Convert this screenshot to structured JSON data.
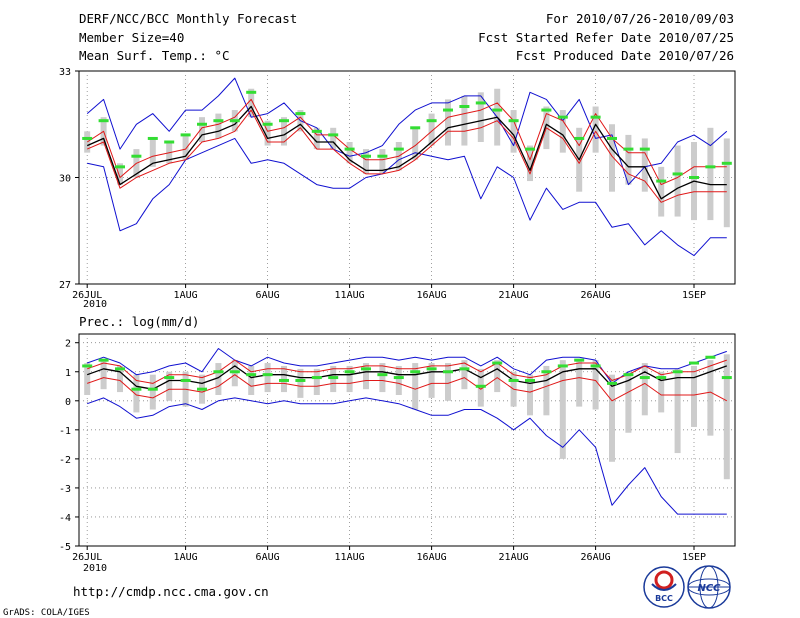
{
  "header": {
    "title": "DERF/NCC/BCC Monthly Forecast",
    "member": "Member Size=40",
    "variable": "Mean Surf. Temp.: °C",
    "period": "For 2010/07/26-2010/09/03",
    "started": "Fcst Started Refer Date 2010/07/25",
    "produced": "Fcst Produced Date 2010/07/26"
  },
  "footer": {
    "url": "http://cmdp.ncc.cma.gov.cn",
    "credit": "GrADS: COLA/IGES",
    "logo_left_text": "BCC",
    "logo_right_text": "NCC"
  },
  "colors": {
    "box": "#cccccc",
    "green": "#33dd33",
    "mean": "#000000",
    "red": "#e01818",
    "blue": "#1010d0",
    "grid": "#888888"
  },
  "chart_data": [
    {
      "type": "line",
      "id": "temp",
      "title": "Mean Surf. Temp.: °C",
      "x_tick_labels": [
        "26JUL",
        "1AUG",
        "6AUG",
        "11AUG",
        "16AUG",
        "21AUG",
        "26AUG",
        "1SEP"
      ],
      "x_tick_days": [
        1,
        7,
        12,
        17,
        22,
        27,
        32,
        38
      ],
      "x_sublabel": "2010",
      "xlim": [
        0.5,
        40.5
      ],
      "y_ticks": [
        27,
        30,
        33
      ],
      "ylim": [
        27,
        33
      ],
      "series": [
        {
          "name": "ensemble-mean",
          "values": [
            30.9,
            31.1,
            29.8,
            30.1,
            30.4,
            30.5,
            30.6,
            31.2,
            31.3,
            31.5,
            32.0,
            31.1,
            31.2,
            31.5,
            31.0,
            31.0,
            30.5,
            30.2,
            30.2,
            30.3,
            30.6,
            31.0,
            31.4,
            31.5,
            31.6,
            31.7,
            31.2,
            30.2,
            31.5,
            31.2,
            30.5,
            31.5,
            30.8,
            30.3,
            30.3,
            29.4,
            29.7,
            29.9,
            29.8,
            29.8
          ]
        },
        {
          "name": "red-upper",
          "values": [
            31.0,
            31.3,
            30.0,
            30.4,
            30.6,
            30.7,
            30.8,
            31.4,
            31.5,
            31.7,
            32.2,
            31.3,
            31.4,
            31.7,
            31.2,
            31.2,
            30.8,
            30.5,
            30.5,
            30.6,
            30.9,
            31.3,
            31.7,
            31.8,
            31.9,
            32.1,
            31.6,
            30.5,
            31.8,
            31.6,
            30.9,
            31.8,
            31.1,
            30.7,
            30.7,
            29.8,
            30.0,
            30.3,
            30.3,
            30.3
          ]
        },
        {
          "name": "red-lower",
          "values": [
            30.8,
            31.0,
            29.7,
            30.0,
            30.2,
            30.4,
            30.5,
            31.0,
            31.1,
            31.3,
            31.9,
            31.0,
            31.0,
            31.4,
            30.8,
            30.8,
            30.4,
            30.1,
            30.1,
            30.2,
            30.5,
            30.9,
            31.3,
            31.3,
            31.4,
            31.6,
            31.1,
            30.1,
            31.4,
            31.1,
            30.4,
            31.3,
            30.6,
            30.1,
            29.9,
            29.3,
            29.5,
            29.6,
            29.6,
            29.6
          ]
        },
        {
          "name": "blue-max",
          "values": [
            31.8,
            32.2,
            30.8,
            31.5,
            31.8,
            31.3,
            31.9,
            31.9,
            32.3,
            32.8,
            31.7,
            31.8,
            32.1,
            31.6,
            31.4,
            30.8,
            30.6,
            30.7,
            30.9,
            31.5,
            31.9,
            32.1,
            32.1,
            32.3,
            32.3,
            31.7,
            30.9,
            32.4,
            32.2,
            31.6,
            32.2,
            31.1,
            31.2,
            29.8,
            30.3,
            30.4,
            31.0,
            31.2,
            30.9,
            31.3
          ]
        },
        {
          "name": "blue-min",
          "values": [
            30.4,
            30.3,
            28.5,
            28.7,
            29.4,
            29.8,
            30.5,
            30.7,
            30.9,
            31.1,
            30.4,
            30.5,
            30.4,
            30.1,
            29.8,
            29.7,
            29.7,
            30.0,
            30.1,
            30.5,
            30.7,
            30.6,
            30.5,
            30.6,
            29.4,
            30.3,
            30.0,
            28.8,
            29.7,
            29.1,
            29.3,
            29.3,
            28.6,
            28.7,
            28.1,
            28.5,
            28.1,
            27.8,
            28.3,
            28.3
          ]
        },
        {
          "name": "green-obs",
          "values": [
            31.1,
            31.6,
            30.3,
            30.6,
            31.1,
            31.0,
            31.2,
            31.5,
            31.6,
            31.6,
            32.4,
            31.5,
            31.6,
            31.8,
            31.3,
            31.2,
            30.8,
            30.6,
            30.6,
            30.8,
            31.4,
            31.6,
            31.9,
            32.0,
            32.1,
            31.9,
            31.6,
            30.8,
            31.9,
            31.7,
            31.1,
            31.7,
            31.1,
            30.8,
            30.8,
            29.9,
            30.1,
            30.0,
            30.3,
            30.4
          ]
        },
        {
          "name": "box-top",
          "values": [
            31.3,
            31.7,
            30.4,
            30.8,
            31.1,
            31.0,
            31.2,
            31.7,
            31.8,
            31.9,
            32.5,
            31.6,
            31.7,
            31.9,
            31.4,
            31.4,
            31.0,
            30.8,
            30.8,
            31.0,
            31.4,
            31.8,
            32.2,
            32.3,
            32.4,
            32.5,
            31.9,
            30.9,
            32.0,
            31.9,
            31.4,
            32.0,
            31.5,
            31.2,
            31.1,
            30.3,
            30.9,
            31.0,
            31.4,
            31.1
          ]
        },
        {
          "name": "box-bottom",
          "values": [
            30.7,
            30.9,
            29.8,
            30.0,
            30.3,
            30.4,
            30.5,
            31.0,
            31.1,
            31.3,
            31.7,
            30.9,
            30.9,
            31.3,
            30.8,
            30.8,
            30.4,
            30.1,
            30.1,
            30.2,
            30.5,
            30.9,
            30.9,
            30.9,
            31.0,
            30.9,
            30.7,
            29.9,
            30.8,
            30.7,
            29.6,
            30.7,
            29.6,
            29.8,
            29.6,
            28.9,
            28.9,
            28.8,
            28.8,
            28.6
          ]
        }
      ]
    },
    {
      "type": "line",
      "id": "prec",
      "title": "Prec.: log(mm/d)",
      "x_tick_labels": [
        "26JUL",
        "1AUG",
        "6AUG",
        "11AUG",
        "16AUG",
        "21AUG",
        "26AUG",
        "1SEP"
      ],
      "x_tick_days": [
        1,
        7,
        12,
        17,
        22,
        27,
        32,
        38
      ],
      "x_sublabel": "2010",
      "xlim": [
        0.5,
        40.5
      ],
      "y_ticks": [
        -5,
        -4,
        -3,
        -2,
        -1,
        0,
        1,
        2
      ],
      "ylim": [
        -5,
        2.3
      ],
      "series": [
        {
          "name": "ensemble-mean",
          "values": [
            0.9,
            1.1,
            1.0,
            0.5,
            0.4,
            0.7,
            0.7,
            0.6,
            0.8,
            1.2,
            0.8,
            0.9,
            0.9,
            0.8,
            0.8,
            0.9,
            0.9,
            1.0,
            1.0,
            0.9,
            0.9,
            1.0,
            1.0,
            1.1,
            0.8,
            1.1,
            0.7,
            0.6,
            0.7,
            1.0,
            1.1,
            1.1,
            0.5,
            0.7,
            1.0,
            0.7,
            0.8,
            0.8,
            1.0,
            1.2
          ]
        },
        {
          "name": "red-upper",
          "values": [
            1.1,
            1.3,
            1.2,
            0.7,
            0.6,
            0.9,
            0.9,
            0.8,
            1.0,
            1.4,
            1.0,
            1.1,
            1.1,
            1.0,
            1.0,
            1.1,
            1.1,
            1.2,
            1.2,
            1.1,
            1.1,
            1.2,
            1.2,
            1.3,
            1.0,
            1.3,
            0.9,
            0.8,
            0.9,
            1.2,
            1.3,
            1.3,
            0.7,
            0.9,
            1.2,
            0.9,
            1.0,
            1.0,
            1.2,
            1.4
          ]
        },
        {
          "name": "red-lower",
          "values": [
            0.6,
            0.8,
            0.7,
            0.2,
            0.1,
            0.4,
            0.4,
            0.3,
            0.5,
            0.9,
            0.5,
            0.6,
            0.6,
            0.5,
            0.5,
            0.6,
            0.6,
            0.7,
            0.7,
            0.6,
            0.4,
            0.6,
            0.6,
            0.8,
            0.4,
            0.8,
            0.4,
            0.3,
            0.5,
            0.7,
            0.8,
            0.7,
            0.0,
            0.3,
            0.6,
            0.2,
            0.2,
            0.2,
            0.3,
            0.0
          ]
        },
        {
          "name": "blue-max",
          "values": [
            1.3,
            1.5,
            1.3,
            0.9,
            1.0,
            1.2,
            1.3,
            1.0,
            1.8,
            1.4,
            1.2,
            1.5,
            1.3,
            1.2,
            1.2,
            1.3,
            1.4,
            1.5,
            1.5,
            1.4,
            1.5,
            1.4,
            1.5,
            1.5,
            1.2,
            1.5,
            1.1,
            0.9,
            1.4,
            1.5,
            1.5,
            1.4,
            0.6,
            1.0,
            1.2,
            1.1,
            1.1,
            1.3,
            1.5,
            1.7
          ]
        },
        {
          "name": "blue-min",
          "values": [
            -0.1,
            0.1,
            -0.2,
            -0.6,
            -0.5,
            -0.2,
            -0.1,
            -0.3,
            0.0,
            0.1,
            0.0,
            -0.1,
            0.0,
            -0.1,
            -0.1,
            -0.1,
            0.0,
            0.1,
            0.0,
            -0.1,
            -0.3,
            -0.5,
            -0.5,
            -0.3,
            -0.3,
            -0.6,
            -1.0,
            -0.6,
            -1.2,
            -1.6,
            -1.0,
            -1.6,
            -3.6,
            -2.9,
            -2.3,
            -3.3,
            -3.9,
            -3.9,
            -3.9,
            -3.9
          ]
        },
        {
          "name": "green-obs",
          "values": [
            1.2,
            1.4,
            1.1,
            0.4,
            0.4,
            0.8,
            0.7,
            0.4,
            1.0,
            1.0,
            0.9,
            0.9,
            0.7,
            0.7,
            0.8,
            0.8,
            1.0,
            1.1,
            0.9,
            0.8,
            1.0,
            1.1,
            1.0,
            1.1,
            0.5,
            1.3,
            0.7,
            0.7,
            1.0,
            1.2,
            1.4,
            1.2,
            0.6,
            0.9,
            0.8,
            0.8,
            1.0,
            1.3,
            1.5,
            0.8
          ]
        },
        {
          "name": "box-top",
          "values": [
            1.3,
            1.4,
            1.2,
            0.9,
            0.9,
            1.0,
            1.0,
            0.9,
            1.3,
            1.4,
            1.2,
            1.3,
            1.2,
            1.1,
            1.1,
            1.2,
            1.2,
            1.3,
            1.3,
            1.2,
            1.3,
            1.3,
            1.3,
            1.4,
            1.1,
            1.4,
            1.0,
            0.9,
            1.2,
            1.4,
            1.4,
            1.4,
            0.9,
            1.0,
            1.3,
            1.0,
            1.1,
            1.2,
            1.4,
            1.6
          ]
        },
        {
          "name": "box-bottom",
          "values": [
            0.2,
            0.4,
            0.3,
            -0.4,
            -0.3,
            0.0,
            -0.2,
            -0.1,
            0.2,
            0.5,
            0.2,
            0.3,
            0.3,
            0.1,
            0.2,
            0.3,
            0.3,
            0.4,
            0.3,
            0.2,
            -0.3,
            0.1,
            0.0,
            0.4,
            -0.2,
            0.3,
            -0.2,
            -0.5,
            -0.5,
            -2.0,
            -0.2,
            -0.3,
            -2.1,
            -1.1,
            -0.5,
            -0.4,
            -1.8,
            -0.9,
            -1.2,
            -2.7
          ]
        }
      ]
    }
  ]
}
